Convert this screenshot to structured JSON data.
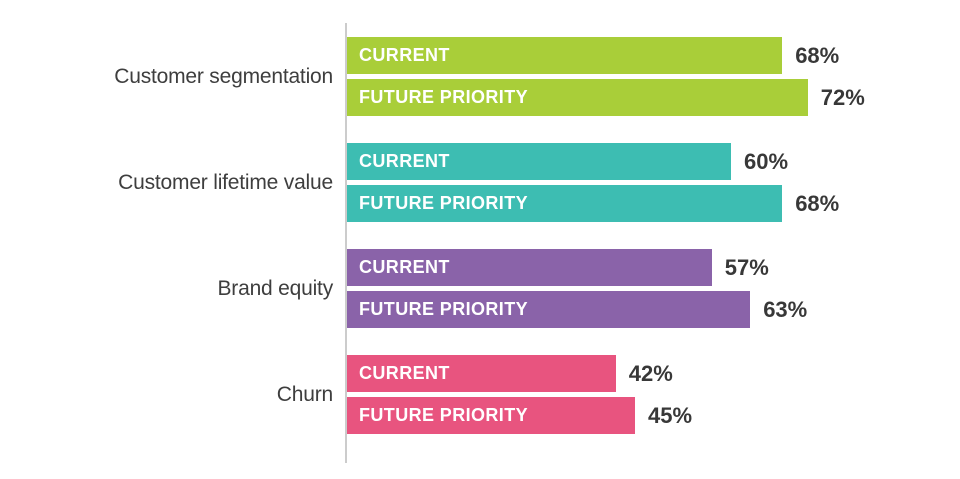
{
  "chart_data": {
    "type": "bar",
    "orientation": "horizontal",
    "title": "",
    "xlabel": "",
    "ylabel": "",
    "xlim": [
      0,
      100
    ],
    "grid": false,
    "legend_position": "in-bar-labels",
    "categories": [
      "Customer segmentation",
      "Customer lifetime value",
      "Brand equity",
      "Churn"
    ],
    "series": [
      {
        "name": "CURRENT",
        "values": [
          68,
          60,
          57,
          42
        ]
      },
      {
        "name": "FUTURE PRIORITY",
        "values": [
          72,
          68,
          63,
          45
        ]
      }
    ],
    "value_suffix": "%",
    "group_colors": [
      "#A9CE39",
      "#3DBDB2",
      "#8A63A9",
      "#E8547F"
    ],
    "bar_label_color": "#FFFFFF",
    "value_label_color": "#383838",
    "axis_line_color": "#CCCCCC",
    "background": "#FFFFFF"
  }
}
